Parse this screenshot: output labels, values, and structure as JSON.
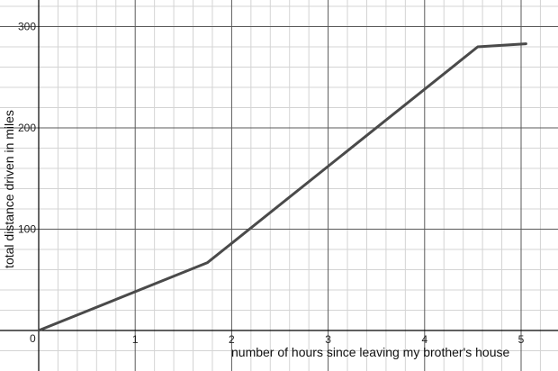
{
  "chart_data": {
    "type": "line",
    "title": "",
    "xlabel": "number of hours since leaving my brother's house",
    "ylabel": "total distance driven in miles",
    "xlim": [
      0,
      5.3
    ],
    "ylim": [
      -36,
      320
    ],
    "x_major_ticks": [
      1,
      2,
      3,
      4,
      5
    ],
    "x_tick_labels": [
      "1",
      "2",
      "3",
      "4",
      "5"
    ],
    "y_major_ticks": [
      100,
      200,
      300
    ],
    "y_tick_labels": [
      "100",
      "200",
      "300"
    ],
    "origin_label": "0",
    "minor_step_x": 0.2,
    "minor_step_y": 20,
    "grid": true,
    "series": [
      {
        "x": [
          0,
          1.75,
          4.55,
          5.05
        ],
        "y": [
          0,
          67,
          280,
          283
        ],
        "color": "#4a4a4a"
      }
    ]
  }
}
